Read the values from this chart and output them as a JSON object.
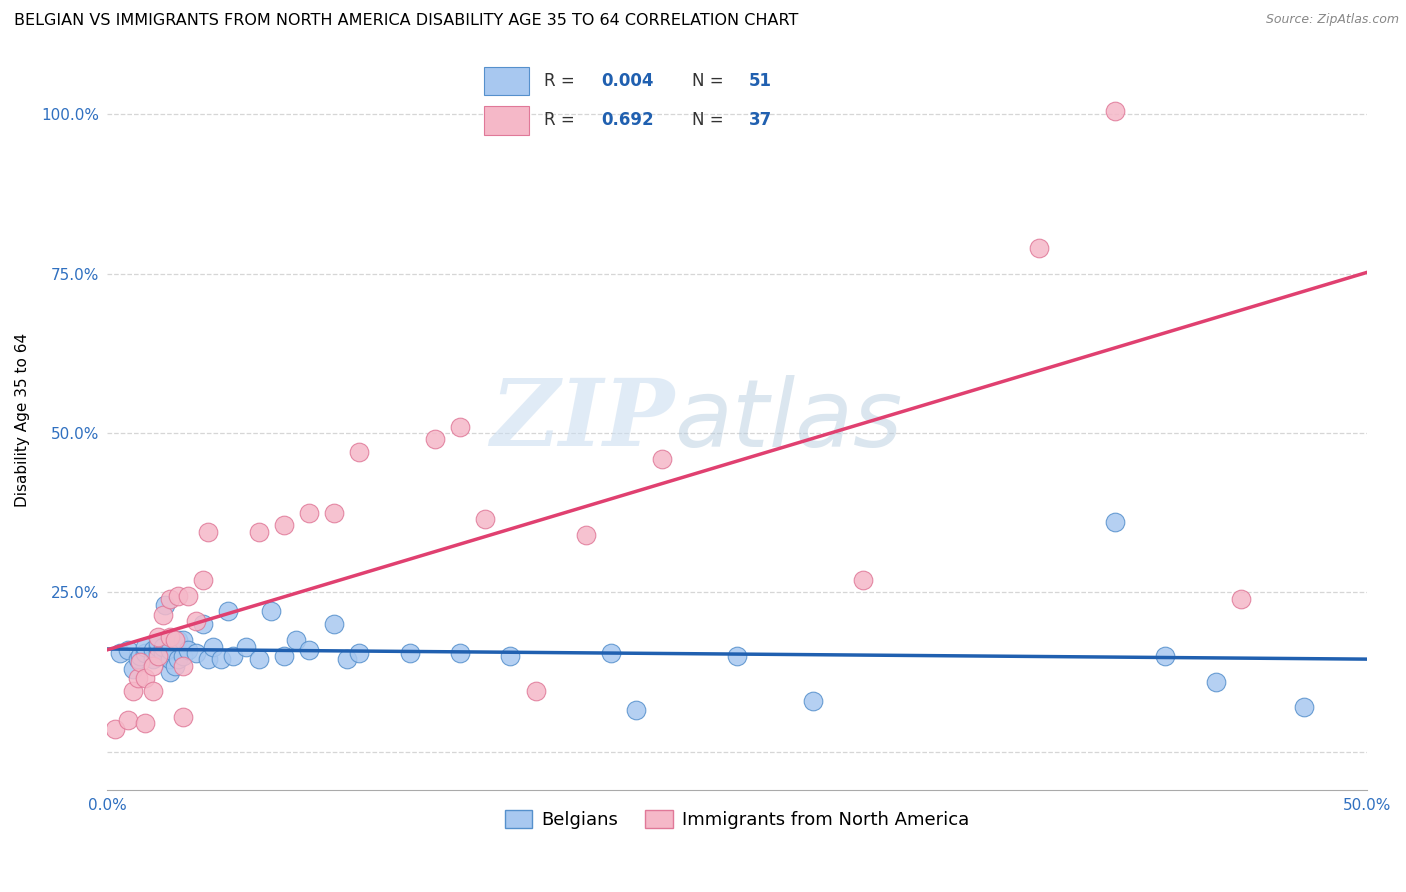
{
  "title": "BELGIAN VS IMMIGRANTS FROM NORTH AMERICA DISABILITY AGE 35 TO 64 CORRELATION CHART",
  "source": "Source: ZipAtlas.com",
  "ylabel": "Disability Age 35 to 64",
  "xmin": 0.0,
  "xmax": 0.5,
  "ymin": -0.06,
  "ymax": 1.1,
  "blue_R": "0.004",
  "blue_N": "51",
  "pink_R": "0.692",
  "pink_N": "37",
  "blue_color": "#A8C8F0",
  "blue_edge": "#5590CC",
  "pink_color": "#F5B8C8",
  "pink_edge": "#E07898",
  "blue_line_color": "#2060B0",
  "pink_line_color": "#E04070",
  "legend_blue_label": "Belgians",
  "legend_pink_label": "Immigrants from North America",
  "watermark_zip": "ZIP",
  "watermark_atlas": "atlas",
  "grid_color": "#cccccc",
  "background_color": "#ffffff",
  "title_fontsize": 11.5,
  "axis_label_fontsize": 11,
  "tick_fontsize": 11,
  "legend_fontsize": 13,
  "blue_x": [
    0.005,
    0.008,
    0.01,
    0.012,
    0.013,
    0.015,
    0.015,
    0.018,
    0.018,
    0.02,
    0.02,
    0.02,
    0.022,
    0.022,
    0.023,
    0.025,
    0.025,
    0.025,
    0.027,
    0.028,
    0.028,
    0.03,
    0.03,
    0.032,
    0.035,
    0.038,
    0.04,
    0.042,
    0.045,
    0.048,
    0.05,
    0.055,
    0.06,
    0.065,
    0.07,
    0.075,
    0.08,
    0.09,
    0.095,
    0.1,
    0.12,
    0.14,
    0.16,
    0.2,
    0.21,
    0.25,
    0.28,
    0.4,
    0.42,
    0.44,
    0.475
  ],
  "blue_y": [
    0.155,
    0.16,
    0.13,
    0.145,
    0.15,
    0.155,
    0.165,
    0.145,
    0.16,
    0.155,
    0.165,
    0.17,
    0.155,
    0.165,
    0.23,
    0.125,
    0.145,
    0.16,
    0.135,
    0.145,
    0.175,
    0.15,
    0.175,
    0.16,
    0.155,
    0.2,
    0.145,
    0.165,
    0.145,
    0.22,
    0.15,
    0.165,
    0.145,
    0.22,
    0.15,
    0.175,
    0.16,
    0.2,
    0.145,
    0.155,
    0.155,
    0.155,
    0.15,
    0.155,
    0.065,
    0.15,
    0.08,
    0.36,
    0.15,
    0.11,
    0.07
  ],
  "pink_x": [
    0.003,
    0.008,
    0.01,
    0.012,
    0.013,
    0.015,
    0.015,
    0.018,
    0.018,
    0.02,
    0.02,
    0.022,
    0.025,
    0.025,
    0.027,
    0.028,
    0.03,
    0.03,
    0.032,
    0.035,
    0.038,
    0.04,
    0.06,
    0.07,
    0.08,
    0.09,
    0.1,
    0.13,
    0.14,
    0.15,
    0.17,
    0.19,
    0.22,
    0.3,
    0.37,
    0.4,
    0.45
  ],
  "pink_y": [
    0.035,
    0.05,
    0.095,
    0.115,
    0.14,
    0.045,
    0.115,
    0.095,
    0.135,
    0.15,
    0.18,
    0.215,
    0.18,
    0.24,
    0.175,
    0.245,
    0.055,
    0.135,
    0.245,
    0.205,
    0.27,
    0.345,
    0.345,
    0.355,
    0.375,
    0.375,
    0.47,
    0.49,
    0.51,
    0.365,
    0.095,
    0.34,
    0.46,
    0.27,
    0.79,
    1.005,
    0.24
  ]
}
